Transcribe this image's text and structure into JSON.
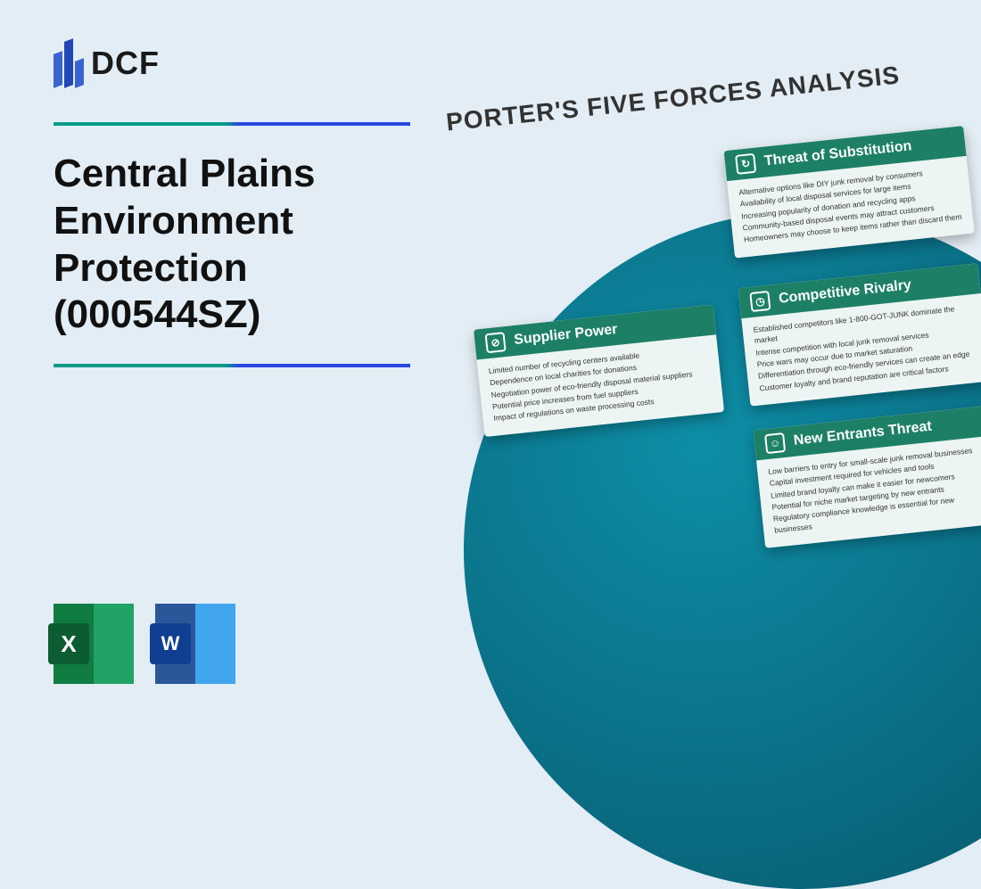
{
  "logo": {
    "text": "DCF"
  },
  "title": "Central Plains Environment Protection (000544SZ)",
  "analysis_heading": "PORTER'S FIVE FORCES ANALYSIS",
  "file_icons": {
    "excel": "X",
    "word": "W"
  },
  "cards": {
    "supplier": {
      "title": "Supplier Power",
      "items": [
        "Limited number of recycling centers available",
        "Dependence on local charities for donations",
        "Negotiation power of eco-friendly disposal material suppliers",
        "Potential price increases from fuel suppliers",
        "Impact of regulations on waste processing costs"
      ]
    },
    "substitution": {
      "title": "Threat of Substitution",
      "items": [
        "Alternative options like DIY junk removal by consumers",
        "Availability of local disposal services for large items",
        "Increasing popularity of donation and recycling apps",
        "Community-based disposal events may attract customers",
        "Homeowners may choose to keep items rather than discard them"
      ]
    },
    "rivalry": {
      "title": "Competitive Rivalry",
      "items": [
        "Established competitors like 1-800-GOT-JUNK dominate the market",
        "Intense competition with local junk removal services",
        "Price wars may occur due to market saturation",
        "Differentiation through eco-friendly services can create an edge",
        "Customer loyalty and brand reputation are critical factors"
      ]
    },
    "entrants": {
      "title": "New Entrants Threat",
      "items": [
        "Low barriers to entry for small-scale junk removal businesses",
        "Capital investment required for vehicles and tools",
        "Limited brand loyalty can make it easier for newcomers",
        "Potential for niche market targeting by new entrants",
        "Regulatory compliance knowledge is essential for new businesses"
      ]
    }
  }
}
